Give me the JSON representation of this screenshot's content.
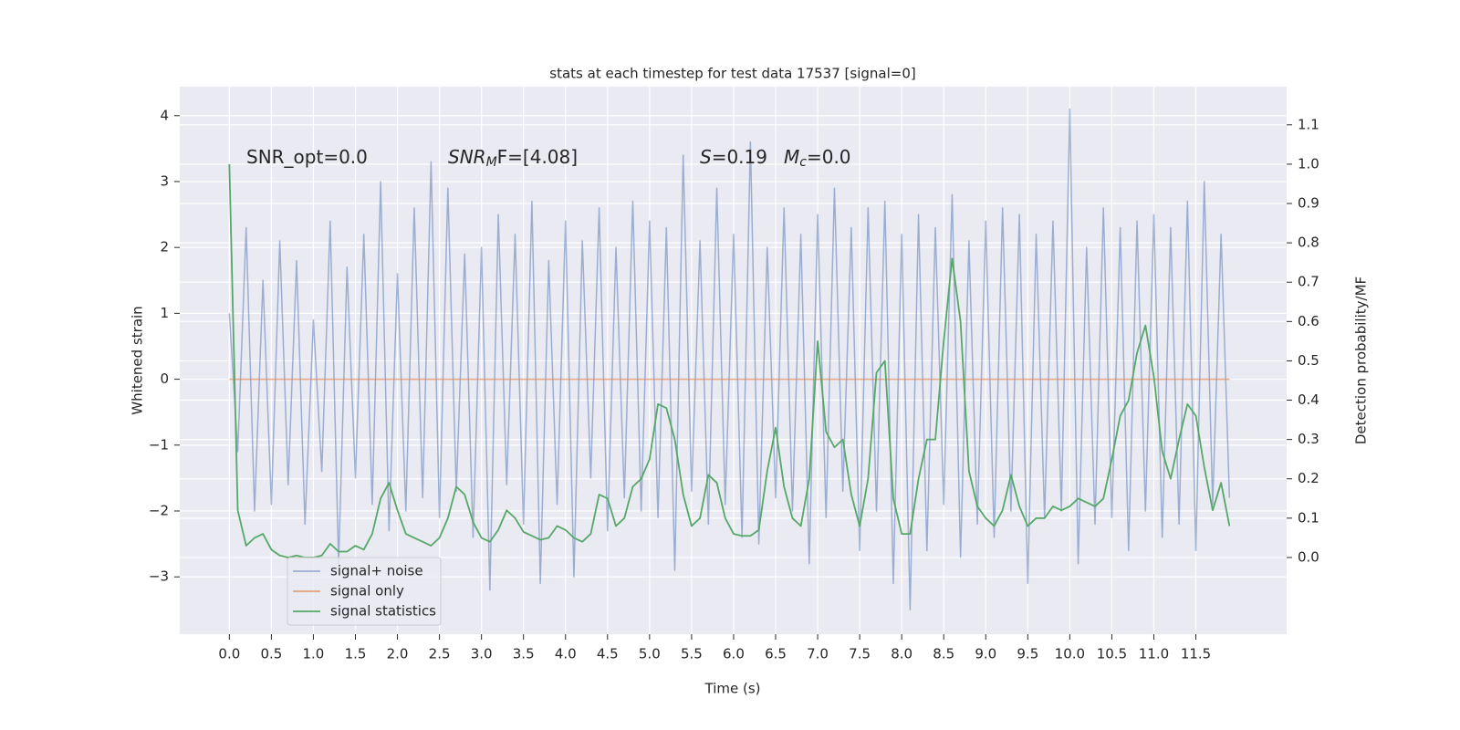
{
  "chart_data": {
    "type": "line",
    "title": "stats at each timestep for test data 17537 [signal=0]",
    "xlabel": "Time (s)",
    "ylabel": "Whitened strain",
    "y2label": "Detection probability/MF",
    "annotations": [
      [
        "SNR_opt=0.0"
      ],
      [
        "SNR",
        "M",
        "F=[4.08]"
      ],
      [
        "S",
        "=0.19"
      ],
      [
        "M",
        "c",
        "=0.0"
      ]
    ],
    "legend": "lower left",
    "grid": true,
    "xlim": [
      -0.59,
      12.58
    ],
    "ylim": [
      -3.87,
      4.44
    ],
    "y2lim": [
      -0.195,
      1.197
    ],
    "xticks": [
      {
        "value": 0,
        "label": "0.0"
      },
      0.5,
      {
        "value": 1,
        "label": "1.0"
      },
      1.5,
      {
        "value": 2,
        "label": "2.0"
      },
      2.5,
      {
        "value": 3,
        "label": "3.0"
      },
      3.5,
      {
        "value": 4,
        "label": "4.0"
      },
      4.5,
      {
        "value": 5,
        "label": "5.0"
      },
      5.5,
      {
        "value": 6,
        "label": "6.0"
      },
      6.5,
      {
        "value": 7,
        "label": "7.0"
      },
      7.5,
      {
        "value": 8,
        "label": "8.0"
      },
      8.5,
      {
        "value": 9,
        "label": "9.0"
      },
      9.5,
      {
        "value": 10,
        "label": "10.0"
      },
      10.5,
      {
        "value": 11,
        "label": "11.0"
      },
      11.5
    ],
    "yticks": [
      {
        "value": -3,
        "label": "−3"
      },
      {
        "value": -2,
        "label": "−2"
      },
      {
        "value": -1,
        "label": "−1"
      },
      0,
      1,
      2,
      3,
      4
    ],
    "y2ticks": [
      {
        "value": 0,
        "label": "0.0"
      },
      0.1,
      0.2,
      0.3,
      0.4,
      0.5,
      0.6,
      0.7,
      0.8,
      0.9,
      {
        "value": 1,
        "label": "1.0"
      },
      1.1
    ],
    "x": [
      0,
      0.1,
      0.2,
      0.3,
      0.4,
      0.5,
      0.6,
      0.7,
      0.8,
      0.9,
      1,
      1.1,
      1.2,
      1.3,
      1.4,
      1.5,
      1.6,
      1.7,
      1.8,
      1.9,
      2,
      2.1,
      2.2,
      2.3,
      2.4,
      2.5,
      2.6,
      2.7,
      2.8,
      2.9,
      3,
      3.1,
      3.2,
      3.3,
      3.4,
      3.5,
      3.6,
      3.7,
      3.8,
      3.9,
      4,
      4.1,
      4.2,
      4.3,
      4.4,
      4.5,
      4.6,
      4.7,
      4.8,
      4.9,
      5,
      5.1,
      5.2,
      5.3,
      5.4,
      5.5,
      5.6,
      5.7,
      5.8,
      5.9,
      6,
      6.1,
      6.2,
      6.3,
      6.4,
      6.5,
      6.6,
      6.7,
      6.8,
      6.9,
      7,
      7.1,
      7.2,
      7.3,
      7.4,
      7.5,
      7.6,
      7.7,
      7.8,
      7.9,
      8,
      8.1,
      8.2,
      8.3,
      8.4,
      8.5,
      8.6,
      8.7,
      8.8,
      8.9,
      9,
      9.1,
      9.2,
      9.3,
      9.4,
      9.5,
      9.6,
      9.7,
      9.8,
      9.9,
      10,
      10.1,
      10.2,
      10.3,
      10.4,
      10.5,
      10.6,
      10.7,
      10.8,
      10.9,
      11,
      11.1,
      11.2,
      11.3,
      11.4,
      11.5,
      11.6,
      11.7,
      11.8,
      11.9
    ],
    "series": [
      {
        "name": "signal+ noise",
        "color": "#4c72b0",
        "values": [
          1.0,
          -1.1,
          2.3,
          -2.0,
          1.5,
          -1.9,
          2.1,
          -1.6,
          1.8,
          -2.2,
          0.9,
          -1.4,
          2.4,
          -2.8,
          1.7,
          -1.5,
          2.2,
          -1.9,
          3.0,
          -2.3,
          1.6,
          -2.0,
          2.6,
          -1.8,
          3.3,
          -2.1,
          2.9,
          -1.7,
          1.9,
          -2.4,
          2.0,
          -3.2,
          2.5,
          -1.6,
          2.2,
          -2.2,
          2.7,
          -3.1,
          1.8,
          -1.9,
          2.4,
          -3.0,
          2.1,
          -1.5,
          2.6,
          -2.3,
          2.0,
          -1.8,
          2.7,
          -2.0,
          2.4,
          -2.1,
          2.3,
          -2.9,
          3.4,
          -1.7,
          2.1,
          -2.2,
          2.9,
          -1.9,
          2.2,
          -2.4,
          3.6,
          -2.5,
          2.0,
          -1.8,
          2.6,
          -2.0,
          2.2,
          -2.8,
          2.5,
          -2.1,
          2.9,
          -1.7,
          2.3,
          -2.6,
          2.6,
          -2.0,
          2.7,
          -3.1,
          2.2,
          -3.5,
          2.5,
          -2.6,
          2.3,
          -1.9,
          2.8,
          -2.7,
          2.1,
          -2.2,
          2.4,
          -2.4,
          2.6,
          -2.0,
          2.5,
          -3.1,
          2.2,
          -2.1,
          2.4,
          -2.0,
          4.1,
          -2.8,
          2.0,
          -2.2,
          2.6,
          -2.1,
          2.3,
          -2.6,
          2.4,
          -2.0,
          2.5,
          -2.4,
          2.3,
          -2.2,
          2.7,
          -2.6,
          3.0,
          -1.9,
          2.2,
          -1.8
        ]
      },
      {
        "name": "signal only",
        "color": "#dd8452",
        "values": [
          0,
          0,
          0,
          0,
          0,
          0,
          0,
          0,
          0,
          0,
          0,
          0,
          0,
          0,
          0,
          0,
          0,
          0,
          0,
          0,
          0,
          0,
          0,
          0,
          0,
          0,
          0,
          0,
          0,
          0,
          0,
          0,
          0,
          0,
          0,
          0,
          0,
          0,
          0,
          0,
          0,
          0,
          0,
          0,
          0,
          0,
          0,
          0,
          0,
          0,
          0,
          0,
          0,
          0,
          0,
          0,
          0,
          0,
          0,
          0,
          0,
          0,
          0,
          0,
          0,
          0,
          0,
          0,
          0,
          0,
          0,
          0,
          0,
          0,
          0,
          0,
          0,
          0,
          0,
          0,
          0,
          0,
          0,
          0,
          0,
          0,
          0,
          0,
          0,
          0,
          0,
          0,
          0,
          0,
          0,
          0,
          0,
          0,
          0,
          0,
          0,
          0,
          0,
          0,
          0,
          0,
          0,
          0,
          0,
          0,
          0,
          0,
          0,
          0,
          0,
          0,
          0,
          0,
          0,
          0
        ]
      },
      {
        "name": "signal statistics",
        "color": "#55a868",
        "axis": "y2",
        "values": [
          1.0,
          0.12,
          0.03,
          0.05,
          0.06,
          0.02,
          0.005,
          0,
          0.005,
          0,
          0,
          0.005,
          0.035,
          0.015,
          0.015,
          0.03,
          0.02,
          0.06,
          0.15,
          0.19,
          0.12,
          0.06,
          0.05,
          0.04,
          0.03,
          0.05,
          0.1,
          0.18,
          0.16,
          0.09,
          0.05,
          0.04,
          0.07,
          0.12,
          0.1,
          0.065,
          0.055,
          0.045,
          0.05,
          0.08,
          0.07,
          0.05,
          0.04,
          0.06,
          0.16,
          0.15,
          0.08,
          0.1,
          0.18,
          0.2,
          0.25,
          0.39,
          0.38,
          0.3,
          0.16,
          0.08,
          0.1,
          0.21,
          0.19,
          0.1,
          0.06,
          0.055,
          0.055,
          0.07,
          0.22,
          0.33,
          0.18,
          0.1,
          0.08,
          0.2,
          0.55,
          0.32,
          0.28,
          0.3,
          0.16,
          0.08,
          0.2,
          0.47,
          0.5,
          0.15,
          0.06,
          0.06,
          0.2,
          0.3,
          0.3,
          0.55,
          0.76,
          0.6,
          0.22,
          0.13,
          0.1,
          0.08,
          0.12,
          0.21,
          0.13,
          0.08,
          0.1,
          0.1,
          0.13,
          0.12,
          0.13,
          0.15,
          0.14,
          0.13,
          0.15,
          0.25,
          0.36,
          0.4,
          0.52,
          0.59,
          0.46,
          0.27,
          0.2,
          0.3,
          0.39,
          0.36,
          0.23,
          0.12,
          0.19,
          0.08
        ]
      }
    ]
  }
}
